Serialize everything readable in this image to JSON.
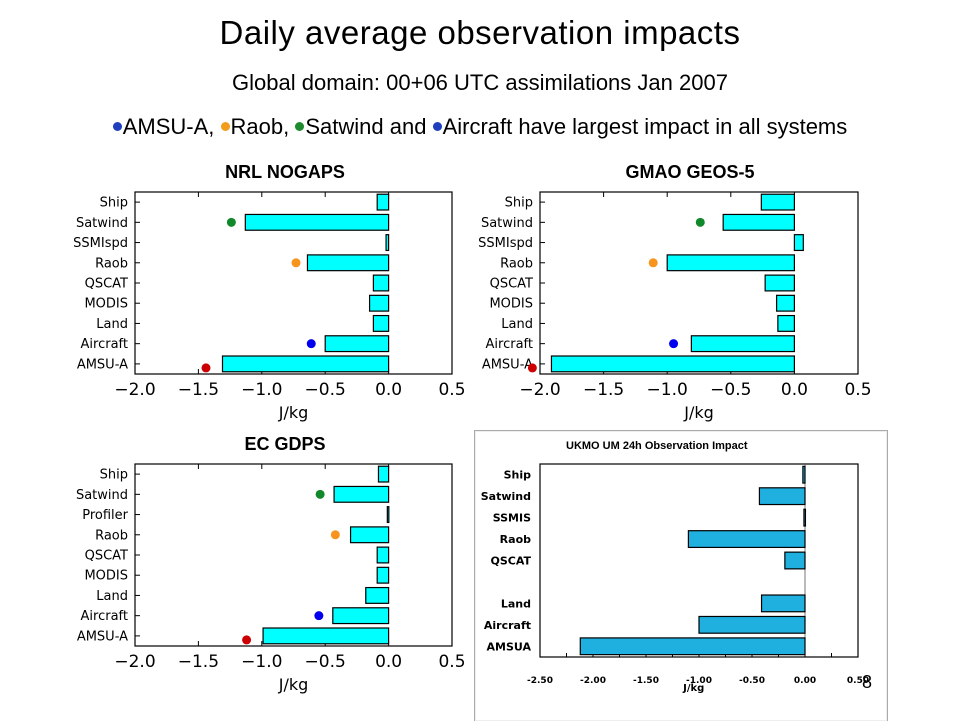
{
  "title": "Daily average observation impacts",
  "subtitle": "Global domain: 00+06 UTC assimilations  Jan 2007",
  "bullets": [
    {
      "color": "#1f3fbf",
      "text": "AMSU-A, "
    },
    {
      "color": "#f39c1b",
      "text": "Raob, "
    },
    {
      "color": "#1e8b2e",
      "text": "Satwind and "
    },
    {
      "color": "#1f3fbf",
      "text": "Aircraft have largest impact in all systems"
    }
  ],
  "page_number": "8",
  "colors": {
    "bar_cyan": "#00ffff",
    "bar_ukmo": "#1fb0e0",
    "amsu_dot": "#cc0000",
    "aircraft_dot": "#0000ee",
    "raob_dot": "#f7941d",
    "satwind_dot": "#11882a"
  },
  "chart_data": [
    {
      "id": "nogaps",
      "type": "bar",
      "orientation": "horizontal",
      "title": "NRL NOGAPS",
      "xlabel": "J/kg",
      "xlim": [
        -2.0,
        0.5
      ],
      "xticks": [
        "−2.0",
        "−1.5",
        "−1.0",
        "−0.5",
        "0.0",
        "0.5"
      ],
      "xtick_values": [
        -2.0,
        -1.5,
        -1.0,
        -0.5,
        0.0,
        0.5
      ],
      "categories": [
        "Ship",
        "Satwind",
        "SSMIspd",
        "Raob",
        "QSCAT",
        "MODIS",
        "Land",
        "Aircraft",
        "AMSU-A"
      ],
      "values": [
        -0.09,
        -1.13,
        -0.02,
        -0.64,
        -0.12,
        -0.15,
        -0.12,
        -0.5,
        -1.31
      ],
      "markers": [
        {
          "category": "Satwind",
          "x": -1.24,
          "color": "#11882a"
        },
        {
          "category": "Raob",
          "x": -0.73,
          "color": "#f7941d"
        },
        {
          "category": "Aircraft",
          "x": -0.61,
          "color": "#0000ee"
        },
        {
          "category": "AMSU-A",
          "x": -1.44,
          "color": "#cc0000"
        }
      ]
    },
    {
      "id": "geos5",
      "type": "bar",
      "orientation": "horizontal",
      "title": "GMAO GEOS-5",
      "xlabel": "J/kg",
      "xlim": [
        -2.0,
        0.5
      ],
      "xticks": [
        "−2.0",
        "−1.5",
        "−1.0",
        "−0.5",
        "0.0",
        "0.5"
      ],
      "xtick_values": [
        -2.0,
        -1.5,
        -1.0,
        -0.5,
        0.0,
        0.5
      ],
      "categories": [
        "Ship",
        "Satwind",
        "SSMIspd",
        "Raob",
        "QSCAT",
        "MODIS",
        "Land",
        "Aircraft",
        "AMSU-A"
      ],
      "values": [
        -0.26,
        -0.56,
        0.07,
        -1.0,
        -0.23,
        -0.14,
        -0.13,
        -0.81,
        -1.91
      ],
      "markers": [
        {
          "category": "Satwind",
          "x": -0.74,
          "color": "#11882a"
        },
        {
          "category": "Raob",
          "x": -1.11,
          "color": "#f7941d"
        },
        {
          "category": "Aircraft",
          "x": -0.95,
          "color": "#0000ee"
        },
        {
          "category": "AMSU-A",
          "x": -2.06,
          "color": "#cc0000"
        }
      ]
    },
    {
      "id": "ecgdps",
      "type": "bar",
      "orientation": "horizontal",
      "title": "EC GDPS",
      "xlabel": "J/kg",
      "xlim": [
        -2.0,
        0.5
      ],
      "xticks": [
        "−2.0",
        "−1.5",
        "−1.0",
        "−0.5",
        "0.0",
        "0.5"
      ],
      "xtick_values": [
        -2.0,
        -1.5,
        -1.0,
        -0.5,
        0.0,
        0.5
      ],
      "categories": [
        "Ship",
        "Satwind",
        "Profiler",
        "Raob",
        "QSCAT",
        "MODIS",
        "Land",
        "Aircraft",
        "AMSU-A"
      ],
      "values": [
        -0.08,
        -0.43,
        -0.01,
        -0.3,
        -0.09,
        -0.09,
        -0.18,
        -0.44,
        -0.99
      ],
      "markers": [
        {
          "category": "Satwind",
          "x": -0.54,
          "color": "#11882a"
        },
        {
          "category": "Raob",
          "x": -0.42,
          "color": "#f7941d"
        },
        {
          "category": "Aircraft",
          "x": -0.55,
          "color": "#0000ee"
        },
        {
          "category": "AMSU-A",
          "x": -1.12,
          "color": "#cc0000"
        }
      ]
    },
    {
      "id": "ukmo",
      "type": "bar",
      "orientation": "horizontal",
      "title": "UKMO UM  24h Observation Impact",
      "xlabel": "J/kg",
      "xlim": [
        -2.5,
        0.5
      ],
      "xticks": [
        "-2.50",
        "-2.25",
        "-2.00",
        "-1.75",
        "-1.50",
        "-1.25",
        "-1.00",
        "-0.75",
        "-0.50",
        "-0.25",
        "0.00",
        "0.25",
        "0.50"
      ],
      "xtick_values": [
        -2.5,
        -2.25,
        -2.0,
        -1.75,
        -1.5,
        -1.25,
        -1.0,
        -0.75,
        -0.5,
        -0.25,
        0.0,
        0.25,
        0.5
      ],
      "xtick_label_every": 2,
      "categories": [
        "Ship",
        "Satwind",
        "SSMIS",
        "Raob",
        "QSCAT",
        "",
        "Land",
        "Aircraft",
        "AMSUA"
      ],
      "values": [
        -0.02,
        -0.43,
        -0.01,
        -1.1,
        -0.19,
        null,
        -0.41,
        -1.0,
        -2.12
      ]
    }
  ]
}
